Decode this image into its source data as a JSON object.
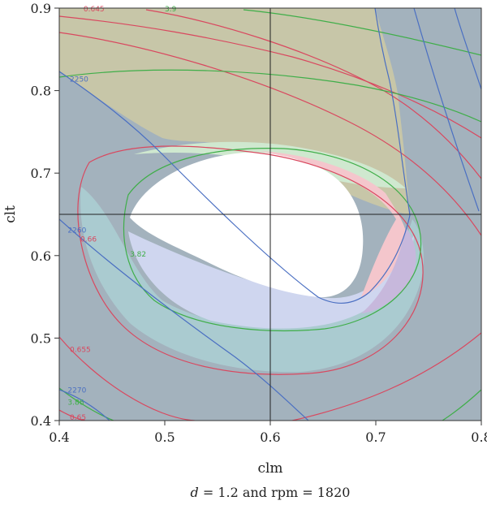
{
  "chart_data": {
    "type": "contour",
    "xlabel": "clm",
    "ylabel": "clt",
    "xlim": [
      0.4,
      0.8
    ],
    "ylim": [
      0.4,
      0.9
    ],
    "x_ticks": [
      "0.4",
      "0.5",
      "0.6",
      "0.7",
      "0.8"
    ],
    "y_ticks": [
      "0.4",
      "0.5",
      "0.6",
      "0.7",
      "0.8",
      "0.9"
    ],
    "crosshair": {
      "x": 0.6,
      "y": 0.65
    },
    "caption_d": "d",
    "caption_rest": " = 1.2 and rpm = 1820",
    "colors": {
      "red": "#d9485f",
      "green": "#3fae49",
      "blue": "#4a6fc2",
      "shade_dark": "#a3b2bd",
      "shade_olive": "#c7c6a8",
      "shade_teal": "#aacbd0",
      "shade_lavender": "#cfd6ef",
      "shade_green": "#cfe8cf",
      "shade_pink": "#f4c6cc",
      "shade_purple": "#c7b8dc"
    },
    "contour_labels": [
      {
        "text": "0.645",
        "series": "red",
        "x": 0.423,
        "y": 0.896
      },
      {
        "text": "3.9",
        "series": "green",
        "x": 0.5,
        "y": 0.896
      },
      {
        "text": "2250",
        "series": "blue",
        "x": 0.41,
        "y": 0.811
      },
      {
        "text": "2260",
        "series": "blue",
        "x": 0.408,
        "y": 0.628
      },
      {
        "text": "0.66",
        "series": "red",
        "x": 0.42,
        "y": 0.617
      },
      {
        "text": "3.82",
        "series": "green",
        "x": 0.467,
        "y": 0.599
      },
      {
        "text": "0.655",
        "series": "red",
        "x": 0.41,
        "y": 0.483
      },
      {
        "text": "2270",
        "series": "blue",
        "x": 0.408,
        "y": 0.434
      },
      {
        "text": "3.86",
        "series": "green",
        "x": 0.408,
        "y": 0.419
      },
      {
        "text": "0.65",
        "series": "red",
        "x": 0.41,
        "y": 0.401
      }
    ]
  }
}
